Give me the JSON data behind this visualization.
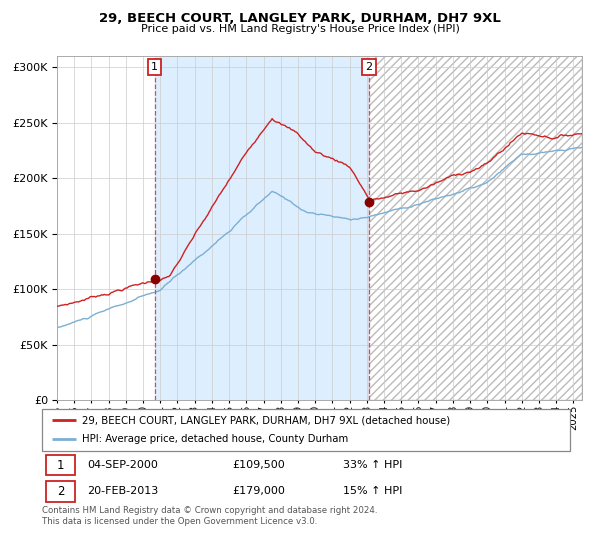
{
  "title": "29, BEECH COURT, LANGLEY PARK, DURHAM, DH7 9XL",
  "subtitle": "Price paid vs. HM Land Registry's House Price Index (HPI)",
  "legend_line1": "29, BEECH COURT, LANGLEY PARK, DURHAM, DH7 9XL (detached house)",
  "legend_line2": "HPI: Average price, detached house, County Durham",
  "transaction1_label": "1",
  "transaction1_date": "04-SEP-2000",
  "transaction1_price": "£109,500",
  "transaction1_hpi": "33% ↑ HPI",
  "transaction2_label": "2",
  "transaction2_date": "20-FEB-2013",
  "transaction2_price": "£179,000",
  "transaction2_hpi": "15% ↑ HPI",
  "footer": "Contains HM Land Registry data © Crown copyright and database right 2024.\nThis data is licensed under the Open Government Licence v3.0.",
  "ylim": [
    0,
    310000
  ],
  "yticks": [
    0,
    50000,
    100000,
    150000,
    200000,
    250000,
    300000
  ],
  "transaction1_x": 2000.67,
  "transaction2_x": 2013.12,
  "transaction1_y": 109500,
  "transaction2_y": 179000,
  "hpi_color": "#7bafd4",
  "price_color": "#cc2222",
  "bg_shaded_color": "#ddeeff",
  "vline_color": "#ee4444",
  "marker_color": "#880000",
  "xmin": 1995,
  "xmax": 2025.5
}
